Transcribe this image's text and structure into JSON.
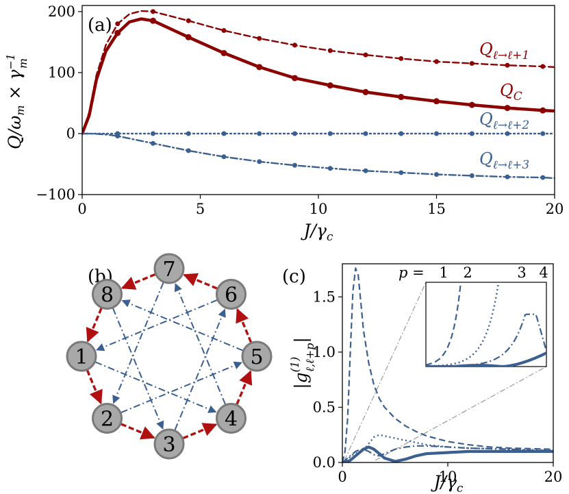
{
  "colors": {
    "red": "#8B0000",
    "blue": "#3B5F8F",
    "gray": "#999999"
  },
  "chart_data": [
    {
      "panel": "(a)",
      "type": "line",
      "xlabel": "J/γc",
      "ylabel": "Q/ωm × γm⁻¹",
      "xlim": [
        0,
        20
      ],
      "ylim": [
        -100,
        210
      ],
      "xticks": [
        "0",
        "5",
        "10",
        "15",
        "20"
      ],
      "yticks": [
        "−100",
        "0",
        "100",
        "200"
      ],
      "x": [
        0,
        0.3,
        0.6,
        1.0,
        1.5,
        2.0,
        2.5,
        3.0,
        4.5,
        6.0,
        7.5,
        9.0,
        10.5,
        12.0,
        13.5,
        15.0,
        16.5,
        18.0,
        19.5,
        20.0
      ],
      "series": [
        {
          "name": "Qℓ→ℓ+1",
          "label": "Qℓ→ℓ+1",
          "style": "dashed",
          "color": "#8B0000",
          "values": [
            0,
            35,
            95,
            145,
            180,
            196,
            201,
            200,
            185,
            169,
            156,
            145,
            136,
            129,
            123,
            118,
            115,
            112,
            110,
            109
          ],
          "marker_x": [
            1.5,
            3.0,
            4.5,
            6.0,
            7.5,
            9.0,
            10.5,
            12.0,
            13.5,
            15.0,
            16.5,
            18.0,
            19.5
          ]
        },
        {
          "name": "QC",
          "label": "QC",
          "style": "solid",
          "color": "#8B0000",
          "values": [
            0,
            30,
            88,
            135,
            165,
            183,
            188,
            185,
            158,
            132,
            109,
            91,
            79,
            68,
            60,
            53,
            47,
            42,
            38,
            37
          ],
          "marker_x": [
            1.5,
            3.0,
            4.5,
            6.0,
            7.5,
            9.0,
            10.5,
            12.0,
            13.5,
            15.0,
            16.5,
            18.0,
            19.5
          ]
        },
        {
          "name": "Qℓ→ℓ+2",
          "label": "Qℓ→ℓ+2",
          "style": "dotted",
          "color": "#3B5F8F",
          "values": [
            0,
            0,
            0,
            0,
            0,
            0,
            0,
            0,
            0,
            0,
            0,
            0,
            0,
            0,
            0,
            0,
            0,
            0,
            0,
            0
          ],
          "marker_x": [
            1.5,
            3.0,
            4.5,
            6.0,
            7.5,
            9.0,
            10.5,
            12.0,
            13.5,
            15.0,
            16.5,
            18.0,
            19.5
          ]
        },
        {
          "name": "Qℓ→ℓ+3",
          "label": "Qℓ→ℓ+3",
          "style": "dashdot",
          "color": "#3B5F8F",
          "values": [
            0,
            -0.2,
            -0.5,
            -1.5,
            -4,
            -8,
            -12,
            -16,
            -28,
            -38,
            -46,
            -52,
            -57,
            -61,
            -64,
            -67,
            -69,
            -71,
            -72,
            -73
          ],
          "marker_x": [
            1.5,
            3.0,
            4.5,
            6.0,
            7.5,
            9.0,
            10.5,
            12.0,
            13.5,
            15.0,
            16.5,
            18.0,
            19.5
          ]
        }
      ]
    },
    {
      "panel": "(b)",
      "type": "diagram",
      "nodes": [
        "1",
        "2",
        "3",
        "4",
        "5",
        "6",
        "7",
        "8"
      ],
      "nearest_edges": [
        [
          "1",
          "2"
        ],
        [
          "2",
          "3"
        ],
        [
          "3",
          "4"
        ],
        [
          "4",
          "5"
        ],
        [
          "5",
          "6"
        ],
        [
          "6",
          "7"
        ],
        [
          "7",
          "8"
        ],
        [
          "8",
          "1"
        ]
      ],
      "star_edges": [
        [
          "1",
          "4"
        ],
        [
          "2",
          "5"
        ],
        [
          "3",
          "6"
        ],
        [
          "4",
          "7"
        ],
        [
          "5",
          "8"
        ],
        [
          "6",
          "1"
        ],
        [
          "7",
          "2"
        ],
        [
          "8",
          "3"
        ]
      ]
    },
    {
      "panel": "(c)",
      "type": "line",
      "xlabel": "J/γc",
      "ylabel": "|g(1) ℓ,ℓ+p|",
      "xlim": [
        0,
        20
      ],
      "ylim": [
        0,
        1.8
      ],
      "xticks": [
        "0",
        "10",
        "20"
      ],
      "yticks": [
        "0.0",
        "0.5",
        "1.0",
        "1.5"
      ],
      "inset_label_prefix": "p =",
      "inset_labels": [
        "1",
        "2",
        "3",
        "4"
      ],
      "x": [
        0,
        0.25,
        0.5,
        0.75,
        1.0,
        1.25,
        1.5,
        1.75,
        2.0,
        2.5,
        3.0,
        3.5,
        4.0,
        5.0,
        6.0,
        7.0,
        8.0,
        10.0,
        12.0,
        14.0,
        16.0,
        18.0,
        20.0
      ],
      "series": [
        {
          "name": "p=1",
          "style": "dashed",
          "values": [
            0,
            0.1,
            0.4,
            1.0,
            1.55,
            1.76,
            1.7,
            1.45,
            1.2,
            0.9,
            0.7,
            0.58,
            0.5,
            0.4,
            0.33,
            0.28,
            0.24,
            0.19,
            0.16,
            0.14,
            0.13,
            0.125,
            0.12
          ]
        },
        {
          "name": "p=2",
          "style": "dotted",
          "values": [
            0,
            0.01,
            0.03,
            0.05,
            0.07,
            0.08,
            0.09,
            0.1,
            0.11,
            0.17,
            0.23,
            0.25,
            0.24,
            0.22,
            0.2,
            0.18,
            0.16,
            0.14,
            0.13,
            0.125,
            0.12,
            0.115,
            0.11
          ]
        },
        {
          "name": "p=3",
          "style": "dashdot",
          "values": [
            0,
            0.02,
            0.04,
            0.06,
            0.08,
            0.1,
            0.11,
            0.12,
            0.12,
            0.1,
            0.07,
            0.06,
            0.08,
            0.12,
            0.14,
            0.15,
            0.15,
            0.14,
            0.13,
            0.125,
            0.12,
            0.11,
            0.11
          ]
        },
        {
          "name": "p=4",
          "style": "solid",
          "values": [
            0,
            0.0,
            0.01,
            0.02,
            0.04,
            0.06,
            0.08,
            0.1,
            0.12,
            0.14,
            0.12,
            0.08,
            0.04,
            0.01,
            0.03,
            0.06,
            0.08,
            0.09,
            0.1,
            0.1,
            0.1,
            0.1,
            0.1
          ]
        }
      ]
    }
  ],
  "panel_a": {
    "label": "(a)",
    "series_labels": {
      "q1": "Q",
      "q1sub": "ℓ→ℓ+1",
      "qc": "Q",
      "qcsub": "C",
      "q2": "Q",
      "q2sub": "ℓ→ℓ+2",
      "q3": "Q",
      "q3sub": "ℓ→ℓ+3"
    },
    "ylabel_main": "Q/ω",
    "ylabel_sub": "m",
    "ylabel_times": " × γ",
    "ylabel_sup": "−1",
    "ylabel_sub2": "m",
    "xlabel_main": "J/γ",
    "xlabel_sub": "c"
  },
  "panel_b": {
    "label": "(b)"
  },
  "panel_c": {
    "label": "(c)",
    "ylabel_left": "|g",
    "ylabel_sup": "(1)",
    "ylabel_sub": "ℓ,ℓ+p",
    "ylabel_right": "|",
    "xlabel_main": "J/γ",
    "xlabel_sub": "c"
  }
}
